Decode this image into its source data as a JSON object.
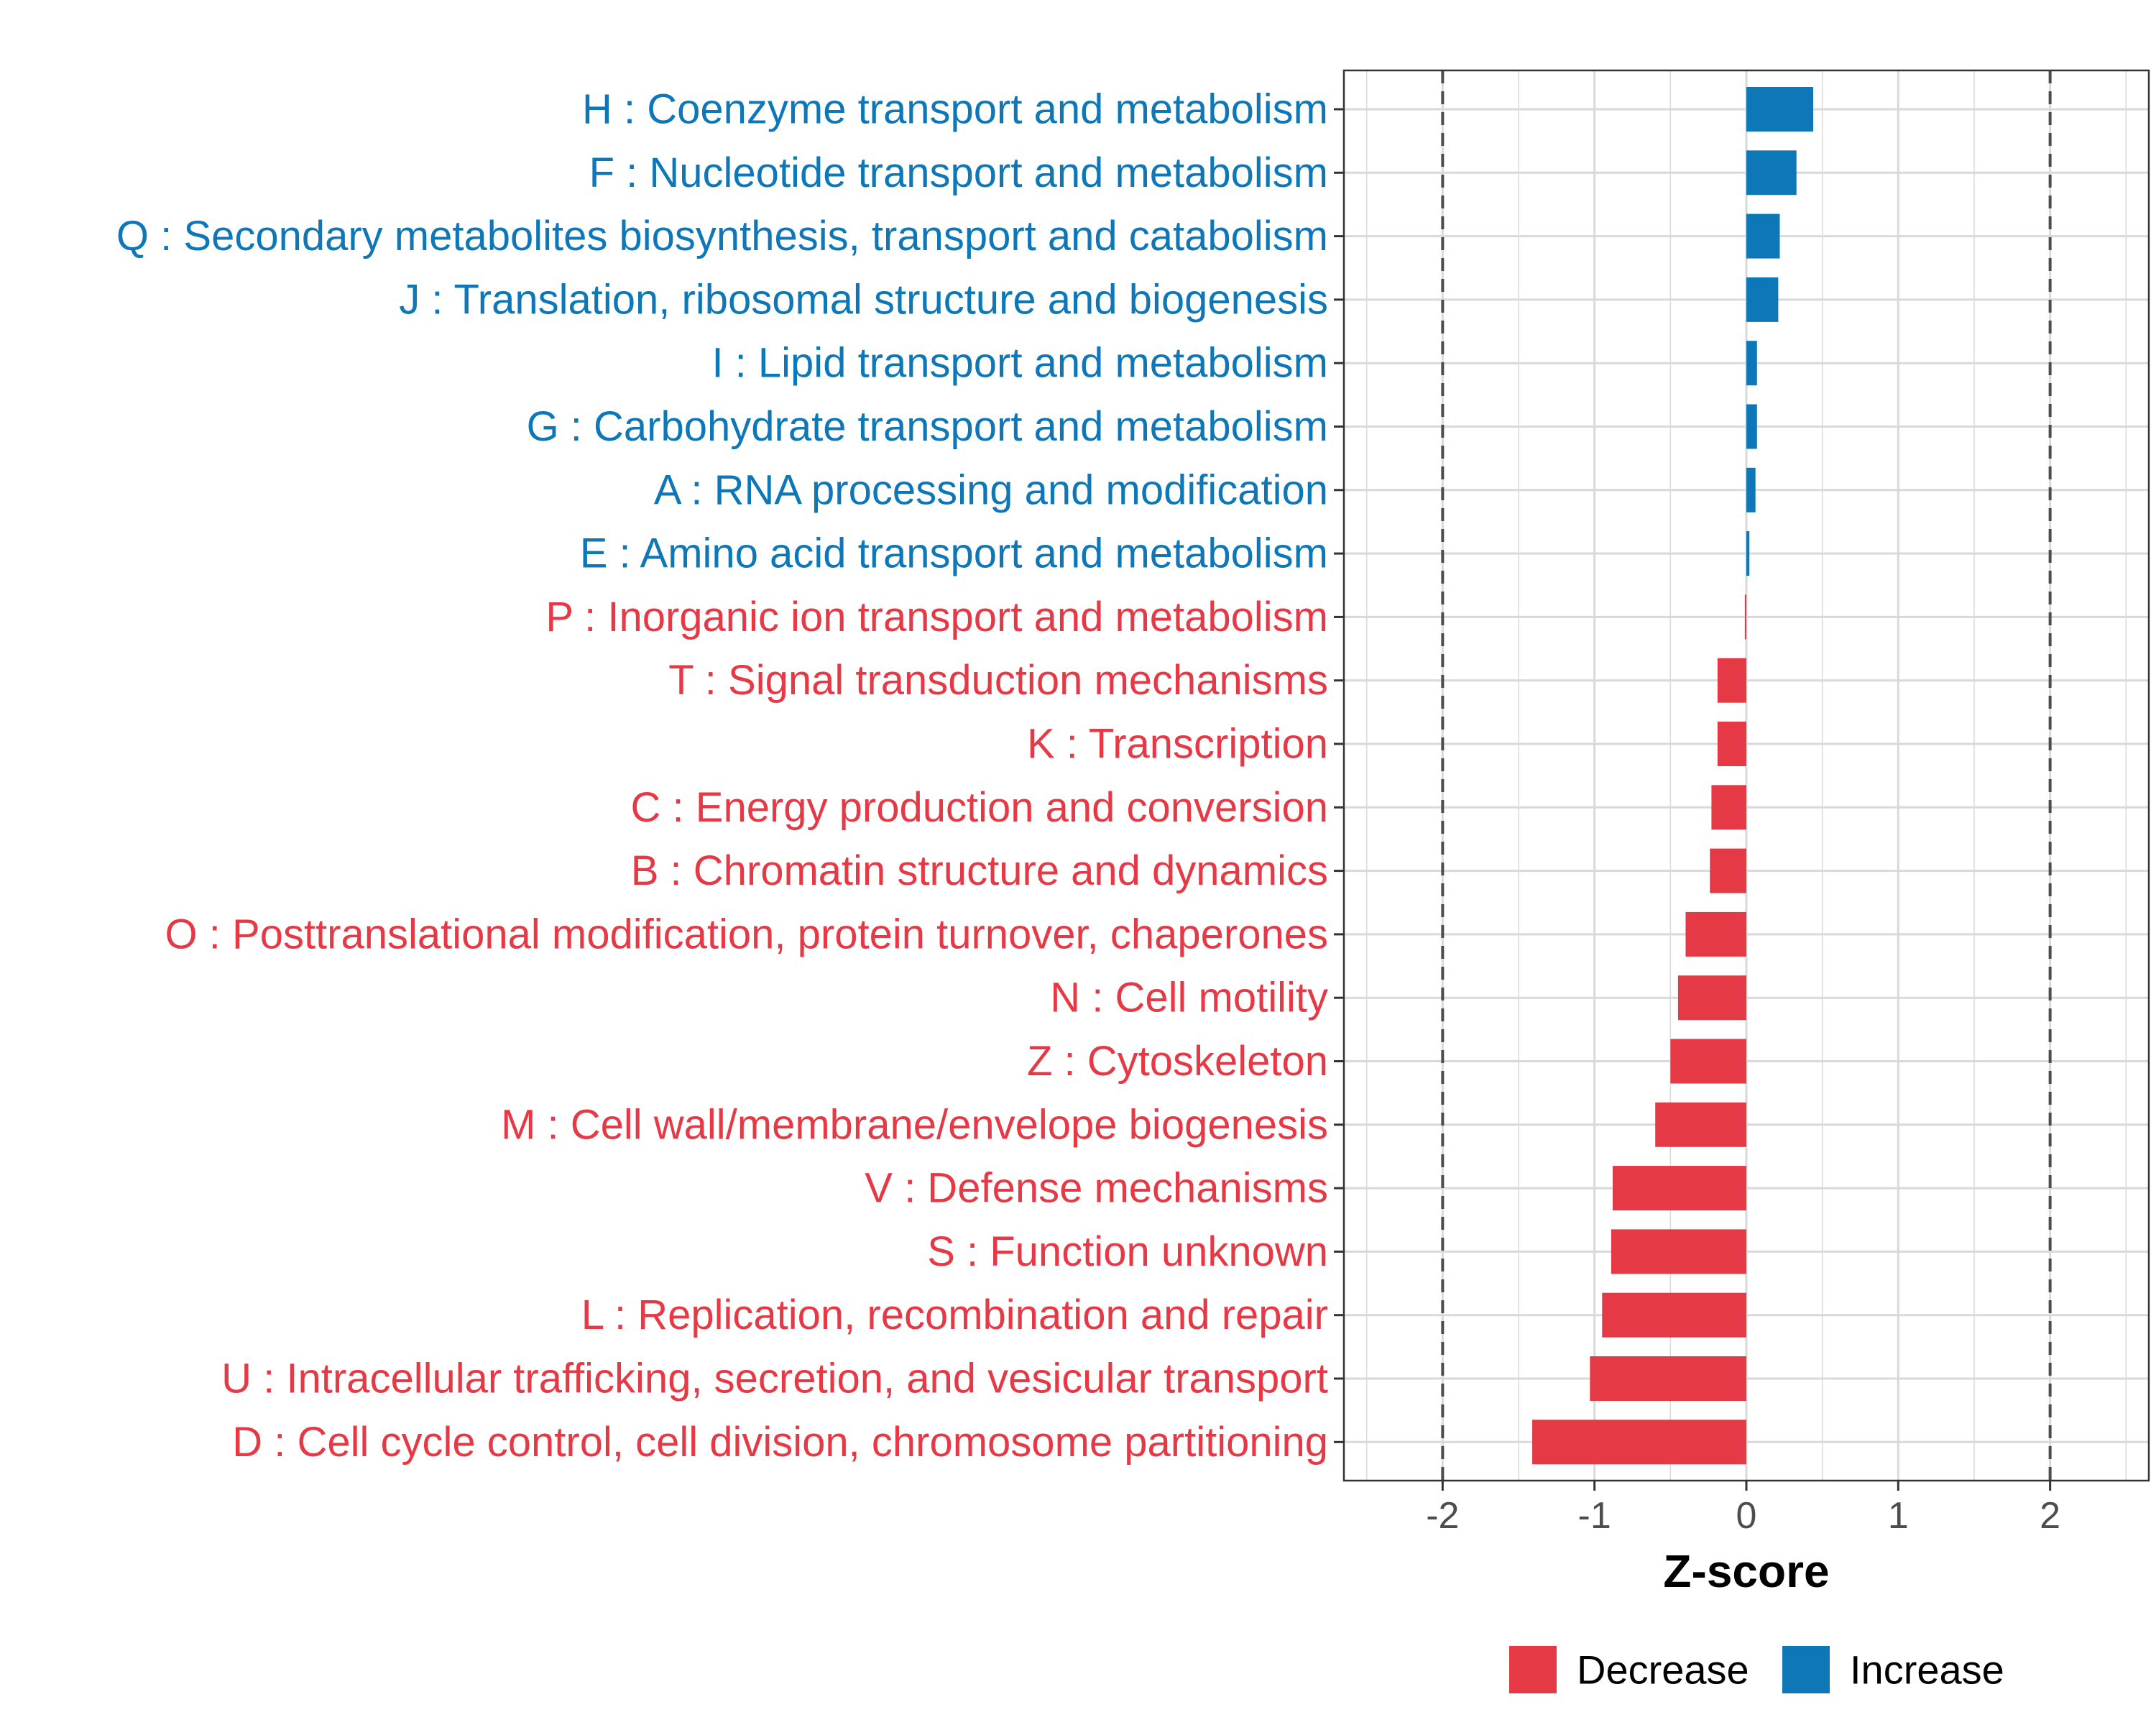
{
  "colors": {
    "increase": "#0e77b8",
    "decrease": "#e63946",
    "grid": "#d9d9d9",
    "axis": "#333333",
    "threshold": "#4d4d4d"
  },
  "chart_data": {
    "type": "bar",
    "orientation": "horizontal",
    "xlabel": "Z-score",
    "ylabel": "",
    "xlim": [
      -2.65,
      2.65
    ],
    "xticks": [
      -2,
      -1,
      0,
      1,
      2
    ],
    "xtick_labels": [
      "-2",
      "-1",
      "0",
      "1",
      "2"
    ],
    "threshold_lines": [
      -2,
      2
    ],
    "grid": true,
    "legend_position": "bottom",
    "legend": [
      {
        "key": "decrease",
        "label": "Decrease"
      },
      {
        "key": "increase",
        "label": "Increase"
      }
    ],
    "categories": [
      "H : Coenzyme transport and metabolism",
      "F : Nucleotide transport and metabolism",
      "Q : Secondary metabolites biosynthesis, transport and catabolism",
      "J : Translation, ribosomal structure and biogenesis",
      "I : Lipid transport and metabolism",
      "G : Carbohydrate transport and metabolism",
      "A : RNA processing and modification",
      "E : Amino acid transport and metabolism",
      "P : Inorganic ion transport and metabolism",
      "T : Signal transduction mechanisms",
      "K : Transcription",
      "C : Energy production and conversion",
      "B : Chromatin structure and dynamics",
      "O : Posttranslational modification, protein turnover, chaperones",
      "N : Cell motility",
      "Z : Cytoskeleton",
      "M : Cell wall/membrane/envelope biogenesis",
      "V : Defense mechanisms",
      "S : Function unknown",
      "L : Replication, recombination and repair",
      "U : Intracellular trafficking, secretion, and vesicular transport",
      "D : Cell cycle control, cell division, chromosome partitioning"
    ],
    "values": [
      0.44,
      0.33,
      0.22,
      0.21,
      0.07,
      0.07,
      0.06,
      0.02,
      -0.01,
      -0.19,
      -0.19,
      -0.23,
      -0.24,
      -0.4,
      -0.45,
      -0.5,
      -0.6,
      -0.88,
      -0.89,
      -0.95,
      -1.03,
      -1.41
    ]
  }
}
